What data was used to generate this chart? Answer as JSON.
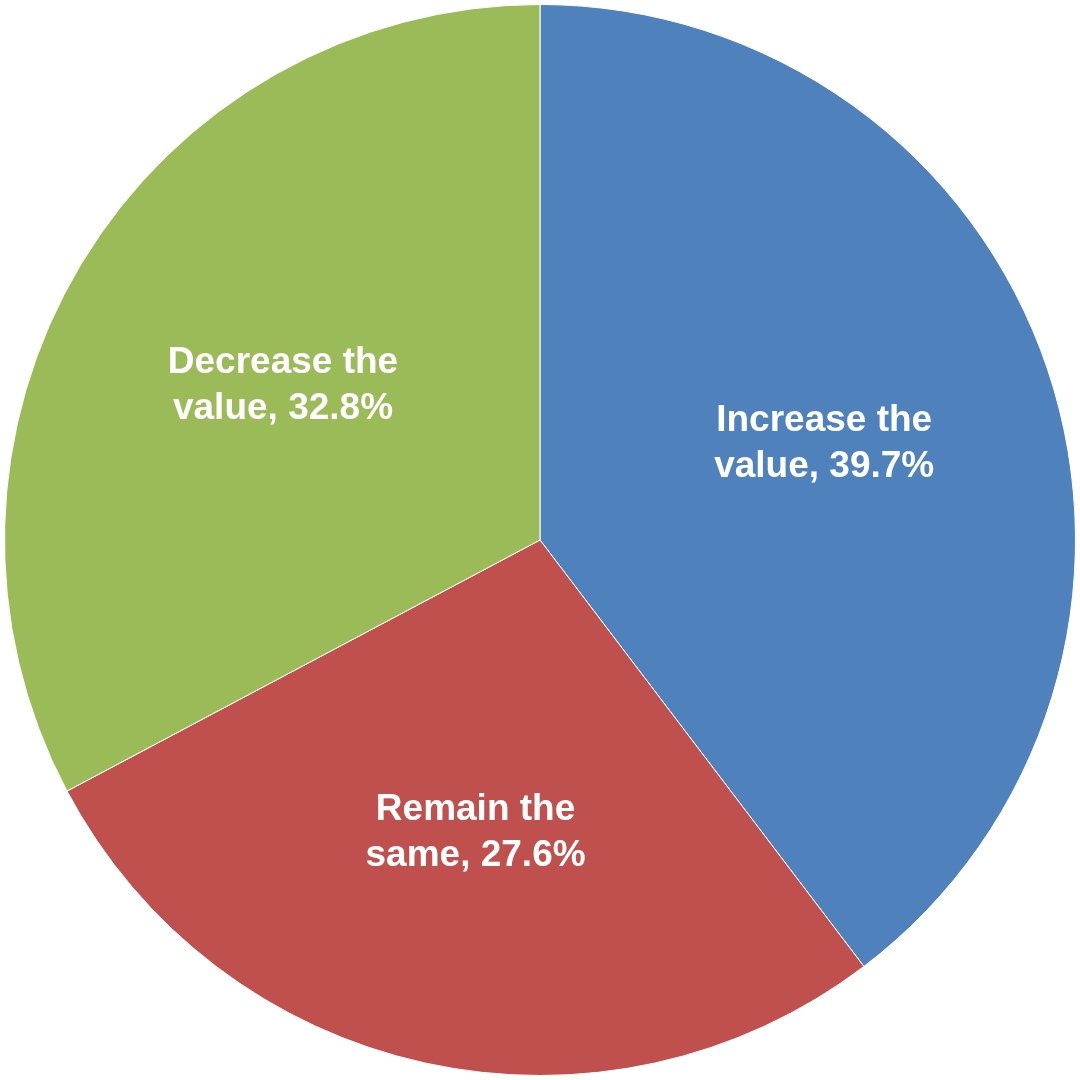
{
  "chart_data": {
    "type": "pie",
    "categories": [
      "Increase the value",
      "Remain the same",
      "Decrease the value"
    ],
    "values": [
      39.7,
      27.6,
      32.8
    ],
    "colors": [
      "#4f81bd",
      "#c0504d",
      "#9bbb59"
    ],
    "value_labels": [
      "39.7%",
      "27.6%",
      "32.8%"
    ],
    "legend": false
  }
}
